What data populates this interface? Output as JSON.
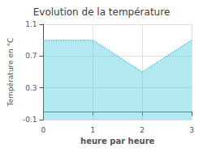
{
  "chart_data": {
    "type": "area",
    "title": "Evolution de la température",
    "x_label": "heure par heure",
    "y_label": "Température en °C",
    "x": [
      0,
      1,
      2,
      3
    ],
    "values": [
      0.9,
      0.9,
      0.5,
      0.9
    ],
    "xlim": [
      0,
      3
    ],
    "ylim": [
      -0.1,
      1.1
    ],
    "xticks": [
      0,
      1,
      2,
      3
    ],
    "yticks": [
      -0.1,
      0.3,
      0.7,
      1.1
    ],
    "color": "#55ccdd",
    "line_style": "dotted",
    "grid": true
  }
}
